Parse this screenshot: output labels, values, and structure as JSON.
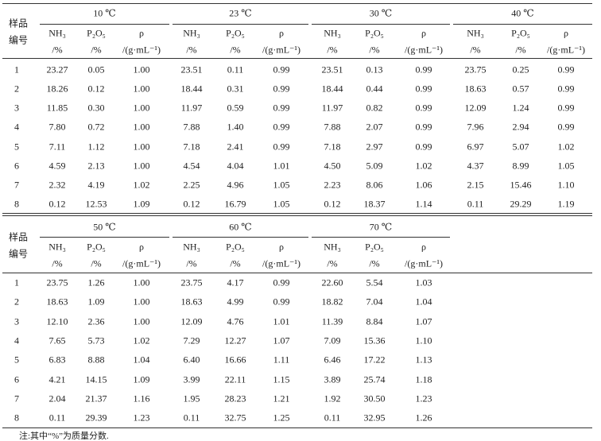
{
  "row_header": [
    "样品",
    "编号"
  ],
  "column_names": [
    "NH₃",
    "P₂O₅",
    "ρ"
  ],
  "column_units": [
    "/%",
    "/%",
    "/(g·mL⁻¹)"
  ],
  "tables": [
    {
      "groups": [
        "10 ℃",
        "23 ℃",
        "30 ℃",
        "40 ℃"
      ],
      "rows": [
        [
          "1",
          "23.27",
          "0.05",
          "1.00",
          "23.51",
          "0.11",
          "0.99",
          "23.51",
          "0.13",
          "0.99",
          "23.75",
          "0.25",
          "0.99"
        ],
        [
          "2",
          "18.26",
          "0.12",
          "1.00",
          "18.44",
          "0.31",
          "0.99",
          "18.44",
          "0.44",
          "0.99",
          "18.63",
          "0.57",
          "0.99"
        ],
        [
          "3",
          "11.85",
          "0.30",
          "1.00",
          "11.97",
          "0.59",
          "0.99",
          "11.97",
          "0.82",
          "0.99",
          "12.09",
          "1.24",
          "0.99"
        ],
        [
          "4",
          "7.80",
          "0.72",
          "1.00",
          "7.88",
          "1.40",
          "0.99",
          "7.88",
          "2.07",
          "0.99",
          "7.96",
          "2.94",
          "0.99"
        ],
        [
          "5",
          "7.11",
          "1.12",
          "1.00",
          "7.18",
          "2.41",
          "0.99",
          "7.18",
          "2.97",
          "0.99",
          "6.97",
          "5.07",
          "1.02"
        ],
        [
          "6",
          "4.59",
          "2.13",
          "1.00",
          "4.54",
          "4.04",
          "1.01",
          "4.50",
          "5.09",
          "1.02",
          "4.37",
          "8.99",
          "1.05"
        ],
        [
          "7",
          "2.32",
          "4.19",
          "1.02",
          "2.25",
          "4.96",
          "1.05",
          "2.23",
          "8.06",
          "1.06",
          "2.15",
          "15.46",
          "1.10"
        ],
        [
          "8",
          "0.12",
          "12.53",
          "1.09",
          "0.12",
          "16.79",
          "1.05",
          "0.12",
          "18.37",
          "1.14",
          "0.11",
          "29.29",
          "1.19"
        ]
      ]
    },
    {
      "groups": [
        "50 ℃",
        "60 ℃",
        "70 ℃"
      ],
      "rows": [
        [
          "1",
          "23.75",
          "1.26",
          "1.00",
          "23.75",
          "4.17",
          "0.99",
          "22.60",
          "5.54",
          "1.03"
        ],
        [
          "2",
          "18.63",
          "1.09",
          "1.00",
          "18.63",
          "4.99",
          "0.99",
          "18.82",
          "7.04",
          "1.04"
        ],
        [
          "3",
          "12.10",
          "2.36",
          "1.00",
          "12.09",
          "4.76",
          "1.01",
          "11.39",
          "8.84",
          "1.07"
        ],
        [
          "4",
          "7.65",
          "5.73",
          "1.02",
          "7.29",
          "12.27",
          "1.07",
          "7.09",
          "15.36",
          "1.10"
        ],
        [
          "5",
          "6.83",
          "8.88",
          "1.04",
          "6.40",
          "16.66",
          "1.11",
          "6.46",
          "17.22",
          "1.13"
        ],
        [
          "6",
          "4.21",
          "14.15",
          "1.09",
          "3.99",
          "22.11",
          "1.15",
          "3.89",
          "25.74",
          "1.18"
        ],
        [
          "7",
          "2.04",
          "21.37",
          "1.16",
          "1.95",
          "28.23",
          "1.21",
          "1.92",
          "30.50",
          "1.23"
        ],
        [
          "8",
          "0.11",
          "29.39",
          "1.23",
          "0.11",
          "32.75",
          "1.25",
          "0.11",
          "32.95",
          "1.26"
        ]
      ]
    }
  ],
  "note": "注:其中“%”为质量分数."
}
